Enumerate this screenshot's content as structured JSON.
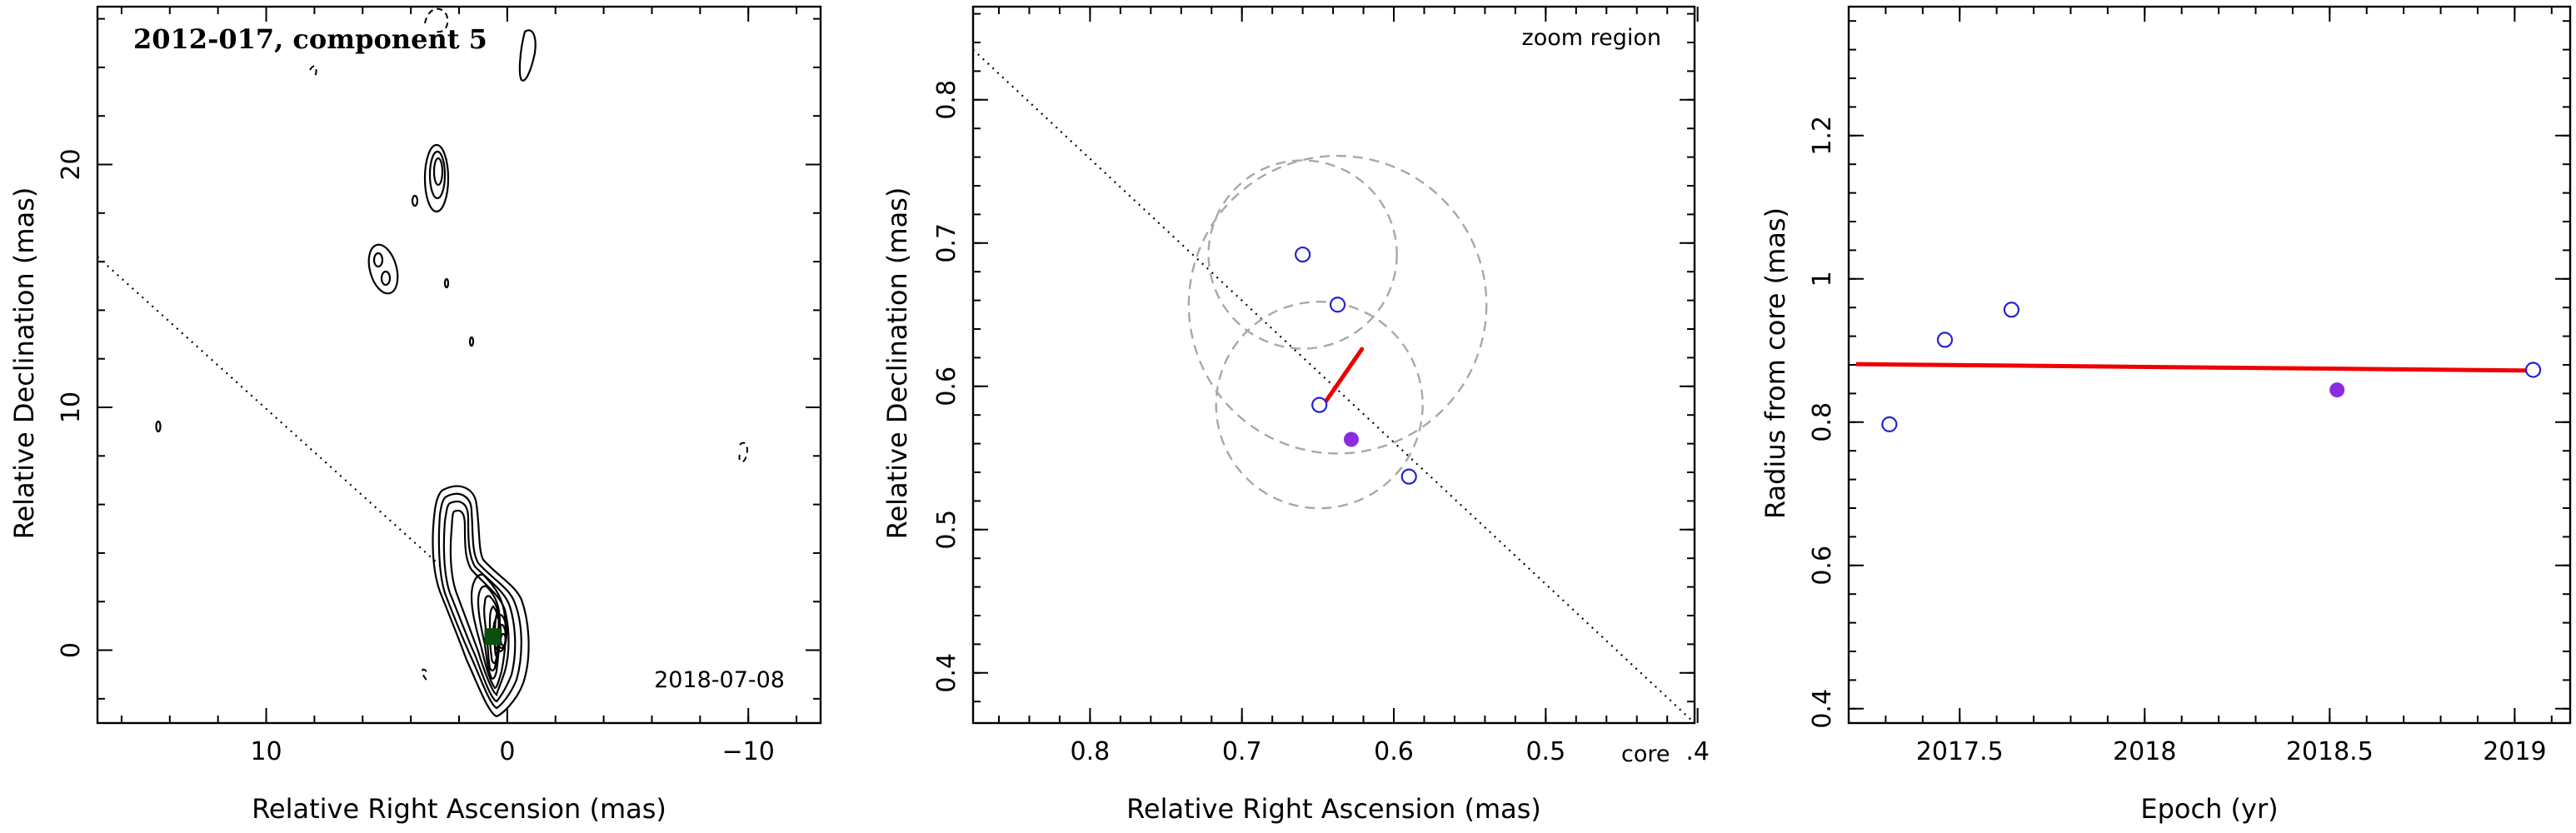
{
  "colors": {
    "open_marker": "#2323d6",
    "filled_marker": "#8a2be2",
    "fit_line": "#ee0000",
    "component_marker": "#0d4d0d",
    "dashed_circle": "#a8a8a8"
  },
  "chart_data": [
    {
      "type": "contour",
      "title": "2012-017, component 5",
      "date_label": "2018-07-08",
      "xlabel": "Relative Right Ascension (mas)",
      "ylabel": "Relative Declination (mas)",
      "xlim": [
        17,
        -13
      ],
      "ylim": [
        -3,
        26.5
      ],
      "x_ticks": [
        10,
        0,
        -10
      ],
      "x_tick_labels": [
        "10",
        "0",
        "−10"
      ],
      "y_ticks": [
        0,
        10,
        20
      ],
      "y_tick_labels": [
        "0",
        "10",
        "20"
      ],
      "x_minor_step": 2,
      "y_minor_step": 2,
      "jet_direction_line": [
        [
          17,
          16.2
        ],
        [
          2.8,
          3.5
        ]
      ],
      "component_position": [
        0.6,
        0.56
      ],
      "grid": false
    },
    {
      "type": "scatter",
      "title": "zoom region",
      "core_label": "core",
      "xlabel": "Relative Right Ascension (mas)",
      "ylabel": "Relative Declination (mas)",
      "xlim": [
        0.877,
        0.402
      ],
      "ylim": [
        0.365,
        0.865
      ],
      "x_ticks": [
        0.8,
        0.7,
        0.6,
        0.5,
        0.4
      ],
      "x_tick_labels": [
        "0.8",
        "0.7",
        "0.6",
        "0.5",
        ".4"
      ],
      "y_ticks": [
        0.4,
        0.5,
        0.6,
        0.7,
        0.8
      ],
      "y_tick_labels": [
        "0.4",
        "0.5",
        "0.6",
        "0.7",
        "0.8"
      ],
      "x_minor_step": 0.02,
      "y_minor_step": 0.02,
      "open_points": [
        {
          "x": 0.66,
          "y": 0.692
        },
        {
          "x": 0.637,
          "y": 0.657
        },
        {
          "x": 0.649,
          "y": 0.587
        },
        {
          "x": 0.59,
          "y": 0.537
        }
      ],
      "filled_points": [
        {
          "x": 0.628,
          "y": 0.563
        }
      ],
      "uncertainty_circles": [
        {
          "cx": 0.66,
          "cy": 0.692,
          "r": 0.062
        },
        {
          "cx": 0.637,
          "cy": 0.657,
          "r": 0.098
        },
        {
          "cx": 0.649,
          "cy": 0.587,
          "r": 0.068
        }
      ],
      "velocity_vector": [
        [
          0.649,
          0.583
        ],
        [
          0.621,
          0.626
        ]
      ],
      "jet_direction_line": [
        [
          0.877,
          0.835
        ],
        [
          0.402,
          0.365
        ]
      ],
      "grid": false
    },
    {
      "type": "scatter",
      "xlabel": "Epoch (yr)",
      "ylabel": "Radius from core (mas)",
      "xlim": [
        2017.2,
        2019.15
      ],
      "ylim": [
        0.38,
        1.38
      ],
      "x_ticks": [
        2017.5,
        2018,
        2018.5,
        2019
      ],
      "x_tick_labels": [
        "2017.5",
        "2018",
        "2018.5",
        "2019"
      ],
      "y_ticks": [
        0.4,
        0.6,
        0.8,
        1,
        1.2
      ],
      "y_tick_labels": [
        "0.4",
        "0.6",
        "0.8",
        "1",
        "1.2"
      ],
      "x_minor_step": 0.1,
      "y_minor_step": 0.04,
      "open_points": [
        {
          "x": 2017.31,
          "y": 0.797
        },
        {
          "x": 2017.46,
          "y": 0.915
        },
        {
          "x": 2017.64,
          "y": 0.957
        },
        {
          "x": 2019.05,
          "y": 0.873
        }
      ],
      "filled_points": [
        {
          "x": 2018.52,
          "y": 0.845
        }
      ],
      "fit_line": [
        [
          2017.22,
          0.881
        ],
        [
          2019.05,
          0.872
        ]
      ],
      "grid": false
    }
  ]
}
